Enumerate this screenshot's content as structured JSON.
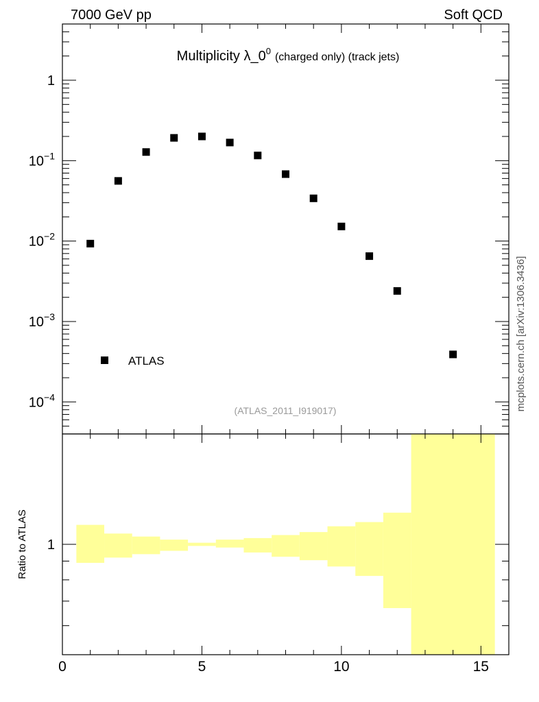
{
  "header": {
    "left": "7000 GeV pp",
    "right": "Soft QCD",
    "side": "mcplots.cern.ch [arXiv:1306.3436]"
  },
  "chart_data": {
    "type": "scatter",
    "title_main": "Multiplicity λ_0",
    "title_sup": "0",
    "title_sub": "(charged only) (track jets)",
    "watermark": "(ATLAS_2011_I919017)",
    "legend": {
      "label": "ATLAS",
      "position": "bottom-left"
    },
    "x_ticks": [
      0,
      5,
      10,
      15
    ],
    "xlim": [
      0,
      16
    ],
    "upper": {
      "yscale": "log",
      "ylim": [
        4e-05,
        5
      ],
      "y_tick_labels": [
        {
          "v": 1,
          "base": "1",
          "exp": ""
        },
        {
          "v": 0.1,
          "base": "10",
          "exp": "−1"
        },
        {
          "v": 0.01,
          "base": "10",
          "exp": "−2"
        },
        {
          "v": 0.001,
          "base": "10",
          "exp": "−3"
        },
        {
          "v": 0.0001,
          "base": "10",
          "exp": "−4"
        }
      ],
      "series": [
        {
          "name": "ATLAS",
          "color": "#000000",
          "marker": "square",
          "x": [
            1,
            2,
            3,
            4,
            5,
            6,
            7,
            8,
            9,
            10,
            11,
            12,
            14
          ],
          "y": [
            0.0093,
            0.056,
            0.128,
            0.192,
            0.2,
            0.168,
            0.116,
            0.068,
            0.034,
            0.0152,
            0.0065,
            0.0024,
            0.00039
          ]
        }
      ]
    },
    "lower": {
      "ylabel": "Ratio to ATLAS",
      "yscale": "log",
      "ylim": [
        0.5,
        2.0
      ],
      "y_tick_label": "1",
      "band_color": "#ffff99",
      "band": [
        {
          "x0": 0.5,
          "x1": 1.5,
          "lo": 0.89,
          "hi": 1.13
        },
        {
          "x0": 1.5,
          "x1": 2.5,
          "lo": 0.92,
          "hi": 1.07
        },
        {
          "x0": 2.5,
          "x1": 3.5,
          "lo": 0.94,
          "hi": 1.05
        },
        {
          "x0": 3.5,
          "x1": 4.5,
          "lo": 0.96,
          "hi": 1.03
        },
        {
          "x0": 4.5,
          "x1": 5.5,
          "lo": 0.99,
          "hi": 1.01
        },
        {
          "x0": 5.5,
          "x1": 6.5,
          "lo": 0.98,
          "hi": 1.03
        },
        {
          "x0": 6.5,
          "x1": 7.5,
          "lo": 0.95,
          "hi": 1.04
        },
        {
          "x0": 7.5,
          "x1": 8.5,
          "lo": 0.925,
          "hi": 1.06
        },
        {
          "x0": 8.5,
          "x1": 9.5,
          "lo": 0.905,
          "hi": 1.08
        },
        {
          "x0": 9.5,
          "x1": 10.5,
          "lo": 0.87,
          "hi": 1.12
        },
        {
          "x0": 10.5,
          "x1": 11.5,
          "lo": 0.82,
          "hi": 1.15
        },
        {
          "x0": 11.5,
          "x1": 12.5,
          "lo": 0.67,
          "hi": 1.22
        },
        {
          "x0": 12.5,
          "x1": 15.5,
          "lo": 0.5,
          "hi": 2.0
        }
      ]
    }
  }
}
